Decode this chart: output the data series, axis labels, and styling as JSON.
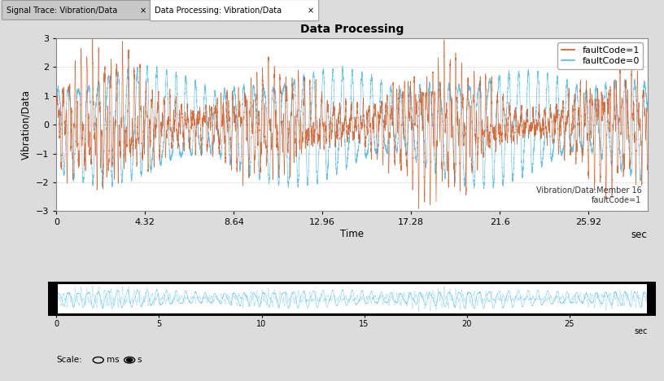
{
  "title": "Data Processing",
  "xlabel": "Time",
  "ylabel": "Vibration/Data",
  "xlim": [
    0,
    28.8
  ],
  "ylim": [
    -3,
    3
  ],
  "yticks": [
    -3,
    -2,
    -1,
    0,
    1,
    2,
    3
  ],
  "xticks": [
    0,
    4.32,
    8.64,
    12.96,
    17.28,
    21.6,
    25.92
  ],
  "xtick_labels": [
    "0",
    "4.32",
    "8.64",
    "12.96",
    "17.28",
    "21.6",
    "25.92"
  ],
  "color_fault1": "#D95319",
  "color_fault0": "#4DBEEE",
  "legend_fault1": "faultCode=1",
  "legend_fault0": "faultCode=0",
  "annotation": "Vibration/Data:Member 16\nfaultCode=1",
  "bg_color": "#DCDCDC",
  "plot_bg_color": "#FFFFFF",
  "title_fontsize": 10,
  "label_fontsize": 8.5,
  "tick_fontsize": 8,
  "minimap_xlim": [
    0,
    28.8
  ],
  "minimap_xticks": [
    0,
    5,
    10,
    15,
    20,
    25
  ],
  "xlabel_right": "sec",
  "duration": 28.8,
  "tab_height": 0.055,
  "tab1_label": "Signal Trace: Vibration/Data",
  "tab2_label": "Data Processing: Vibration/Data"
}
